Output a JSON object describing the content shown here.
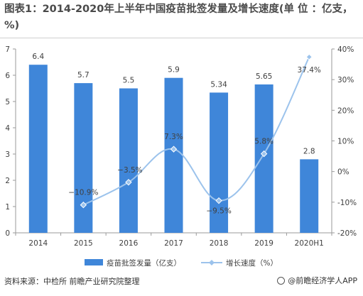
{
  "title": "图表1：2014-2020年上半年中国疫苗批签发量及增长速度(单 位 ：亿支，%)",
  "source": "资料来源：中检所 前瞻产业研究院整理",
  "brand": "@前瞻经济学人APP",
  "colors": {
    "bar": "#3f86d9",
    "line": "#9cc3ec",
    "axis": "#9a9a9a",
    "text": "#404040"
  },
  "chart_data": {
    "type": "bar",
    "categories": [
      "2014",
      "2015",
      "2016",
      "2017",
      "2018",
      "2019",
      "2020H1"
    ],
    "series": [
      {
        "name": "疫苗批签发量（亿支）",
        "type": "bar",
        "axis": "left",
        "values": [
          6.4,
          5.7,
          5.5,
          5.9,
          5.34,
          5.65,
          2.8
        ],
        "labels": [
          "6.4",
          "5.7",
          "5.5",
          "5.9",
          "5.34",
          "5.65",
          "2.8"
        ]
      },
      {
        "name": "增长速度（%）",
        "type": "line",
        "axis": "right",
        "values": [
          null,
          -10.9,
          -3.5,
          7.3,
          -9.5,
          5.8,
          37.4
        ],
        "labels": [
          "",
          "−10.9%",
          "−3.5%",
          "7.3%",
          "−9.5%",
          "5.8%",
          "37.4%"
        ]
      }
    ],
    "yleft": {
      "ticks": [
        "0",
        "1",
        "2",
        "3",
        "4",
        "5",
        "6",
        "7"
      ],
      "ylim": [
        0,
        7
      ]
    },
    "yright": {
      "ticks": [
        "-20%",
        "-10%",
        "0%",
        "10%",
        "20%",
        "30%",
        "40%"
      ],
      "ylim": [
        -20,
        40
      ]
    },
    "legend_position": "bottom"
  }
}
